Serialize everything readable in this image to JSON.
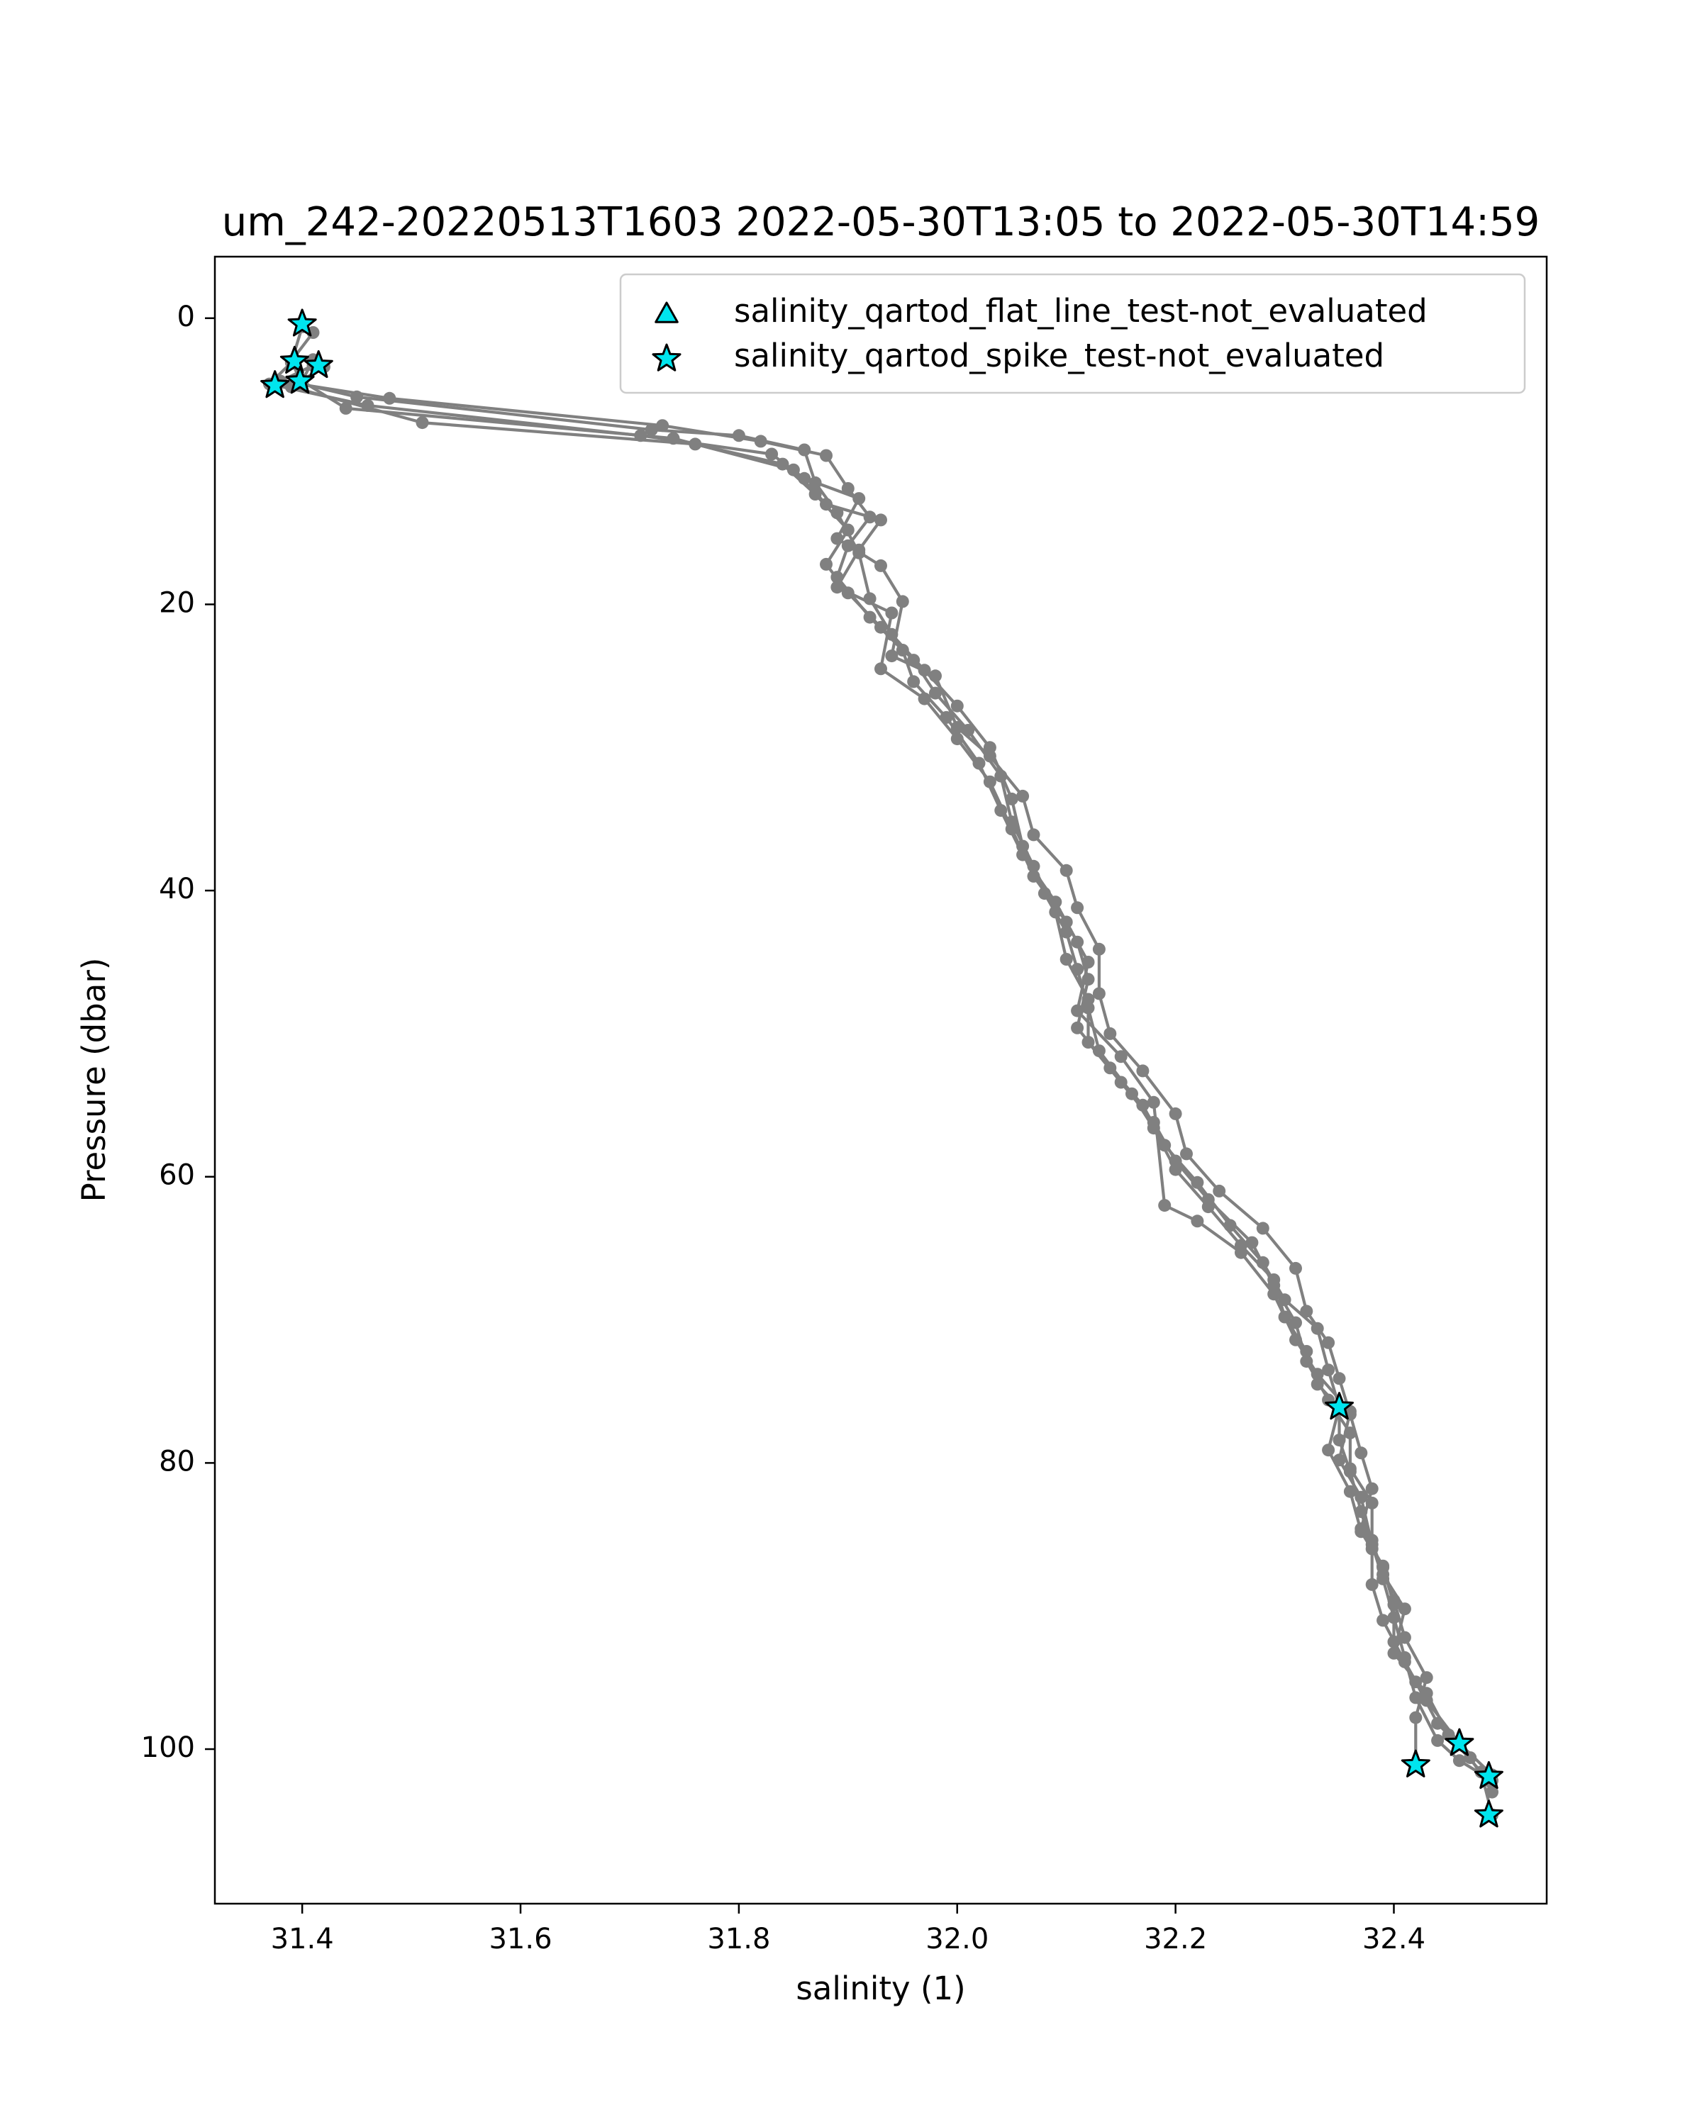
{
  "chart_data": {
    "type": "line",
    "title": "um_242-20220513T1603 2022-05-30T13:05 to 2022-05-30T14:59",
    "xlabel": "salinity (1)",
    "ylabel": "Pressure (dbar)",
    "xlim": [
      31.32,
      32.54
    ],
    "ylim": [
      110.8,
      -4.3
    ],
    "y_inverted": true,
    "grid": false,
    "legend_placement": "top-right",
    "x_ticks": [
      "31.4",
      "31.6",
      "31.8",
      "32.0",
      "32.2",
      "32.4"
    ],
    "y_ticks": [
      "0",
      "20",
      "40",
      "60",
      "80",
      "100"
    ],
    "colors": {
      "profile_line": "#808080",
      "flag_marker_fill": "#00e5ee",
      "flag_marker_edge": "#000000"
    },
    "legend": [
      {
        "marker": "triangle",
        "label": "salinity_qartod_flat_line_test-not_evaluated"
      },
      {
        "marker": "star",
        "label": "salinity_qartod_spike_test-not_evaluated"
      }
    ],
    "series": [
      {
        "points": [
          [
            31.4,
            0.4
          ],
          [
            31.41,
            1.0
          ],
          [
            31.39,
            3.0
          ],
          [
            31.4,
            4.6
          ],
          [
            31.45,
            5.5
          ],
          [
            31.72,
            7.8
          ],
          [
            31.8,
            8.2
          ],
          [
            31.86,
            9.2
          ],
          [
            31.87,
            11.5
          ],
          [
            31.89,
            13.6
          ],
          [
            31.91,
            16.4
          ],
          [
            31.92,
            19.6
          ],
          [
            31.94,
            22.1
          ],
          [
            31.97,
            24.6
          ],
          [
            32.0,
            27.1
          ],
          [
            32.03,
            30.0
          ],
          [
            32.05,
            33.6
          ],
          [
            32.06,
            36.9
          ],
          [
            32.08,
            40.2
          ],
          [
            32.1,
            42.9
          ],
          [
            32.11,
            45.5
          ],
          [
            32.12,
            48.2
          ],
          [
            32.13,
            51.2
          ],
          [
            32.16,
            54.2
          ],
          [
            32.18,
            56.6
          ],
          [
            32.2,
            59.5
          ],
          [
            32.23,
            62.1
          ],
          [
            32.26,
            64.8
          ],
          [
            32.29,
            67.2
          ],
          [
            32.3,
            69.8
          ],
          [
            32.32,
            72.2
          ],
          [
            32.33,
            74.5
          ],
          [
            32.35,
            76.1
          ],
          [
            32.35,
            78.4
          ],
          [
            32.36,
            80.6
          ],
          [
            32.37,
            83.4
          ],
          [
            32.38,
            86.0
          ],
          [
            32.38,
            88.5
          ],
          [
            32.39,
            91.0
          ],
          [
            32.41,
            93.9
          ],
          [
            32.43,
            96.6
          ],
          [
            32.46,
            99.6
          ],
          [
            32.49,
            101.8
          ]
        ]
      },
      {
        "points": [
          [
            31.41,
            3.3
          ],
          [
            31.38,
            4.4
          ],
          [
            31.48,
            5.6
          ],
          [
            31.73,
            7.5
          ],
          [
            31.82,
            8.6
          ],
          [
            31.88,
            9.6
          ],
          [
            31.9,
            11.9
          ],
          [
            31.92,
            13.9
          ],
          [
            31.9,
            15.9
          ],
          [
            31.89,
            18.1
          ],
          [
            31.92,
            20.9
          ],
          [
            31.95,
            23.2
          ],
          [
            31.96,
            25.4
          ],
          [
            31.99,
            27.9
          ],
          [
            32.02,
            31.1
          ],
          [
            32.04,
            34.4
          ],
          [
            32.06,
            37.5
          ],
          [
            32.09,
            40.8
          ],
          [
            32.11,
            43.6
          ],
          [
            32.12,
            46.2
          ],
          [
            32.11,
            49.6
          ],
          [
            32.14,
            52.4
          ],
          [
            32.17,
            55.0
          ],
          [
            32.19,
            57.8
          ],
          [
            32.22,
            60.4
          ],
          [
            32.25,
            63.4
          ],
          [
            32.28,
            66.0
          ],
          [
            32.3,
            68.6
          ],
          [
            32.33,
            70.6
          ],
          [
            32.34,
            73.5
          ],
          [
            32.35,
            76.1
          ],
          [
            32.34,
            79.1
          ],
          [
            32.36,
            82.0
          ],
          [
            32.37,
            84.8
          ],
          [
            32.39,
            87.3
          ],
          [
            32.4,
            89.9
          ],
          [
            32.4,
            92.5
          ],
          [
            32.42,
            95.3
          ],
          [
            32.44,
            98.2
          ],
          [
            32.47,
            100.6
          ],
          [
            32.49,
            103.0
          ]
        ]
      },
      {
        "points": [
          [
            31.42,
            3.4
          ],
          [
            31.39,
            4.8
          ],
          [
            31.51,
            7.3
          ],
          [
            31.76,
            8.8
          ],
          [
            31.84,
            10.2
          ],
          [
            31.87,
            12.3
          ],
          [
            31.9,
            14.8
          ],
          [
            31.88,
            17.2
          ],
          [
            31.9,
            19.2
          ],
          [
            31.93,
            21.6
          ],
          [
            31.96,
            23.9
          ],
          [
            31.98,
            26.2
          ],
          [
            32.01,
            28.8
          ],
          [
            32.04,
            32.0
          ],
          [
            32.05,
            35.2
          ],
          [
            32.07,
            38.3
          ],
          [
            32.09,
            41.5
          ],
          [
            32.1,
            44.8
          ],
          [
            32.12,
            47.6
          ],
          [
            32.12,
            50.6
          ],
          [
            32.15,
            53.4
          ],
          [
            32.18,
            56.2
          ],
          [
            32.2,
            58.9
          ],
          [
            32.23,
            61.6
          ],
          [
            32.27,
            64.6
          ],
          [
            32.29,
            67.6
          ],
          [
            32.31,
            70.2
          ],
          [
            32.32,
            72.9
          ],
          [
            32.34,
            75.6
          ],
          [
            32.36,
            77.9
          ],
          [
            32.36,
            80.4
          ],
          [
            32.38,
            82.8
          ],
          [
            32.38,
            85.4
          ],
          [
            32.39,
            87.8
          ],
          [
            32.41,
            90.2
          ],
          [
            32.4,
            93.3
          ],
          [
            32.43,
            96.1
          ],
          [
            32.45,
            99.0
          ],
          [
            32.48,
            101.6
          ],
          [
            32.49,
            104.6
          ]
        ]
      },
      {
        "points": [
          [
            31.4,
            0.6
          ],
          [
            31.39,
            3.1
          ],
          [
            31.37,
            4.6
          ],
          [
            31.46,
            6.1
          ],
          [
            31.71,
            8.2
          ],
          [
            31.83,
            9.5
          ],
          [
            31.86,
            11.2
          ],
          [
            31.91,
            12.6
          ],
          [
            31.89,
            15.4
          ],
          [
            31.93,
            17.3
          ],
          [
            31.95,
            19.8
          ],
          [
            31.94,
            23.6
          ],
          [
            31.98,
            25.0
          ],
          [
            32.0,
            28.6
          ],
          [
            32.03,
            30.6
          ],
          [
            32.06,
            33.4
          ],
          [
            32.07,
            36.1
          ],
          [
            32.1,
            38.6
          ],
          [
            32.11,
            41.2
          ],
          [
            32.13,
            44.1
          ],
          [
            32.13,
            47.2
          ],
          [
            32.14,
            50.0
          ],
          [
            32.17,
            52.6
          ],
          [
            32.2,
            55.6
          ],
          [
            32.21,
            58.4
          ],
          [
            32.24,
            61.0
          ],
          [
            32.28,
            63.6
          ],
          [
            32.31,
            66.4
          ],
          [
            32.32,
            69.4
          ],
          [
            32.34,
            71.6
          ],
          [
            32.35,
            74.1
          ],
          [
            32.36,
            76.6
          ],
          [
            32.37,
            79.3
          ],
          [
            32.38,
            81.8
          ],
          [
            32.37,
            84.6
          ],
          [
            32.39,
            87.2
          ],
          [
            32.4,
            89.6
          ],
          [
            32.41,
            92.2
          ],
          [
            32.43,
            95.0
          ],
          [
            32.42,
            97.8
          ],
          [
            32.42,
            101.1
          ]
        ]
      },
      {
        "points": [
          [
            31.41,
            2.9
          ],
          [
            31.4,
            4.4
          ],
          [
            31.44,
            6.3
          ],
          [
            31.74,
            8.4
          ],
          [
            31.85,
            10.6
          ],
          [
            31.88,
            13.0
          ],
          [
            31.93,
            14.1
          ],
          [
            31.91,
            16.2
          ],
          [
            31.89,
            18.8
          ],
          [
            31.94,
            20.6
          ],
          [
            31.93,
            24.5
          ],
          [
            31.97,
            26.6
          ],
          [
            32.0,
            29.4
          ],
          [
            32.03,
            32.4
          ],
          [
            32.05,
            35.7
          ],
          [
            32.07,
            39.0
          ],
          [
            32.1,
            42.2
          ],
          [
            32.12,
            45.0
          ],
          [
            32.11,
            48.4
          ],
          [
            32.15,
            51.6
          ],
          [
            32.18,
            54.8
          ],
          [
            32.19,
            62.0
          ],
          [
            32.22,
            63.1
          ],
          [
            32.26,
            65.3
          ],
          [
            32.29,
            68.2
          ],
          [
            32.31,
            71.4
          ],
          [
            32.33,
            73.8
          ],
          [
            32.36,
            76.4
          ],
          [
            32.35,
            79.8
          ],
          [
            32.37,
            82.4
          ],
          [
            32.38,
            85.7
          ],
          [
            32.39,
            88.1
          ],
          [
            32.4,
            90.8
          ],
          [
            32.41,
            93.6
          ],
          [
            32.42,
            96.4
          ],
          [
            32.44,
            99.4
          ],
          [
            32.46,
            100.8
          ],
          [
            32.49,
            102.2
          ]
        ]
      }
    ],
    "flagged_points": [
      [
        31.4,
        0.4
      ],
      [
        31.393,
        3.0
      ],
      [
        31.415,
        3.3
      ],
      [
        31.398,
        4.4
      ],
      [
        31.375,
        4.7
      ],
      [
        32.35,
        76.1
      ],
      [
        32.42,
        101.1
      ],
      [
        32.46,
        99.6
      ],
      [
        32.487,
        101.9
      ],
      [
        32.487,
        104.6
      ]
    ],
    "flagged_marker": "star"
  }
}
